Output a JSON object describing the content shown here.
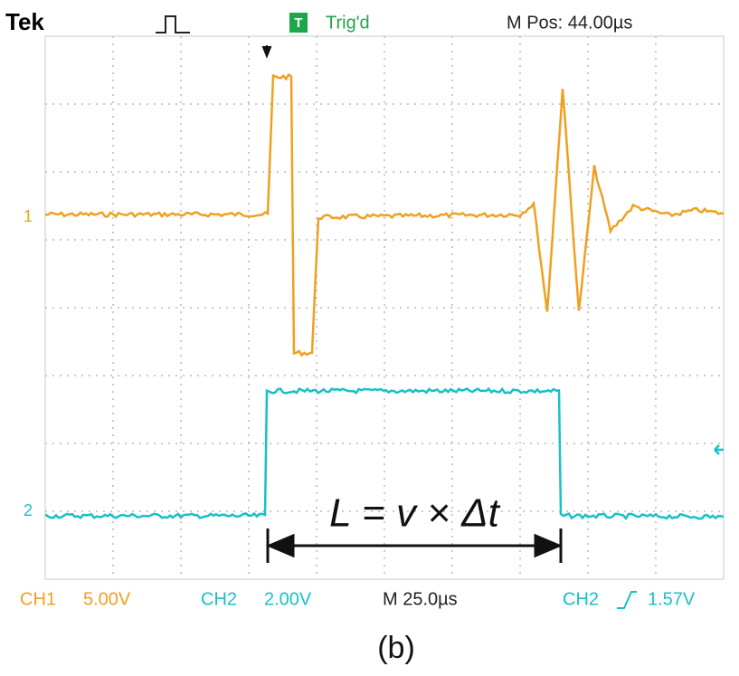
{
  "header": {
    "brand": "Tek",
    "trigger_icon": "T",
    "trigger_status": "Trig'd",
    "position": "M Pos: 44.00µs"
  },
  "channel_markers": {
    "ch1": "1",
    "ch2": "2"
  },
  "annotation": {
    "equation": "L = v × Δt"
  },
  "footer": {
    "ch1_label": "CH1",
    "ch1_scale": "5.00V",
    "ch2_label": "CH2",
    "ch2_scale": "2.00V",
    "timebase": "M 25.0µs",
    "trigger_source": "CH2",
    "trigger_level": "1.57V"
  },
  "caption": "(b)"
}
